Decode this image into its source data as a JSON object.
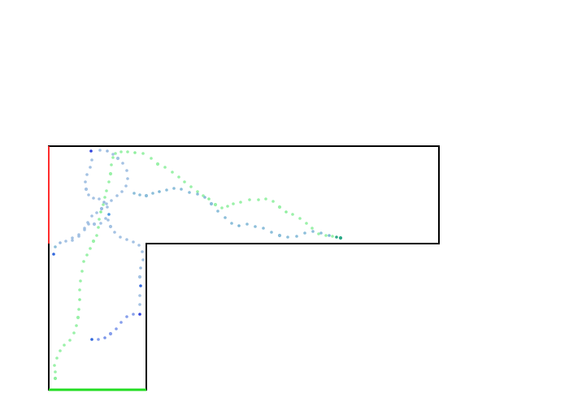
{
  "colors": {
    "background": "#ffffff",
    "wall": "#000000",
    "goal_edge": "#ff2d2d",
    "start_edge": "#22dd22",
    "trajectory_point_min": "#14a07a",
    "trajectory_point_mid": "#9abbe0",
    "trajectory_point_max": "#1b2fd8",
    "light_green_points": "#8fef9e"
  }
}
